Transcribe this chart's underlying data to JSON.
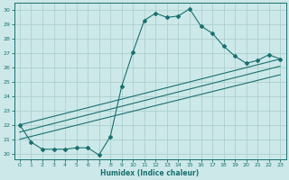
{
  "xlabel": "Humidex (Indice chaleur)",
  "background_color": "#cce8e8",
  "grid_color": "#a8cccc",
  "line_color": "#1a7070",
  "xlim": [
    -0.5,
    23.5
  ],
  "ylim": [
    19.6,
    30.5
  ],
  "xticks": [
    0,
    1,
    2,
    3,
    4,
    5,
    6,
    7,
    8,
    9,
    10,
    11,
    12,
    13,
    14,
    15,
    16,
    17,
    18,
    19,
    20,
    21,
    22,
    23
  ],
  "yticks": [
    20,
    21,
    22,
    23,
    24,
    25,
    26,
    27,
    28,
    29,
    30
  ],
  "curve_x": [
    0,
    1,
    2,
    3,
    4,
    5,
    6,
    7,
    8,
    9,
    10,
    11,
    12,
    13,
    14,
    15,
    16,
    17,
    18,
    19,
    20,
    21,
    22,
    23
  ],
  "curve_y": [
    22.0,
    20.8,
    20.3,
    20.3,
    20.3,
    20.4,
    20.4,
    19.9,
    21.2,
    24.7,
    27.1,
    29.3,
    29.8,
    29.5,
    29.6,
    30.1,
    28.9,
    28.4,
    27.5,
    26.8,
    26.3,
    26.5,
    26.9,
    26.6
  ],
  "diag_lines": [
    {
      "x": [
        0,
        23
      ],
      "y": [
        22.0,
        26.6
      ]
    },
    {
      "x": [
        0,
        23
      ],
      "y": [
        21.5,
        26.1
      ]
    },
    {
      "x": [
        0,
        23
      ],
      "y": [
        21.0,
        25.5
      ]
    }
  ]
}
